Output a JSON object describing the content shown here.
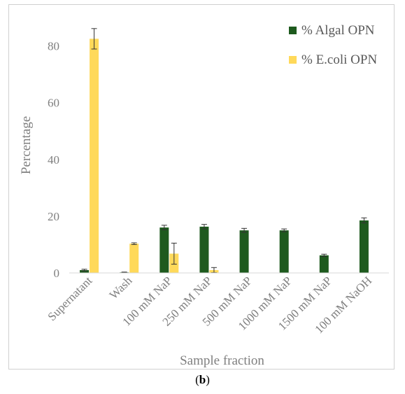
{
  "panel": {
    "open": "(",
    "letter": "b",
    "close": ")"
  },
  "chart_data": {
    "type": "bar",
    "title": "",
    "xlabel": "Sample fraction",
    "ylabel": "Percentage",
    "ylim": [
      0,
      90
    ],
    "yticks": [
      0,
      20,
      40,
      60,
      80
    ],
    "grid": false,
    "legend_position": "top-right",
    "categories": [
      "Supernatant",
      "Wash",
      "100 mM NaP",
      "250 mM NaP",
      "500 mM NaP",
      "1000 mM NaP",
      "1500 mM NaP",
      "100 mM NaOH"
    ],
    "series": [
      {
        "name": "% Algal OPN",
        "color": "#1e5a1e",
        "values": [
          1.0,
          0.2,
          16.0,
          16.3,
          15.0,
          15.0,
          6.2,
          18.5
        ],
        "errors": [
          0.3,
          0.1,
          0.8,
          0.8,
          0.7,
          0.5,
          0.4,
          0.9
        ]
      },
      {
        "name": "% E.coli OPN",
        "color": "#ffd95a",
        "values": [
          82.5,
          10.3,
          6.8,
          1.0,
          0,
          0,
          0,
          0
        ],
        "errors": [
          3.6,
          0.3,
          3.7,
          0.9,
          0,
          0,
          0,
          0
        ]
      }
    ]
  }
}
